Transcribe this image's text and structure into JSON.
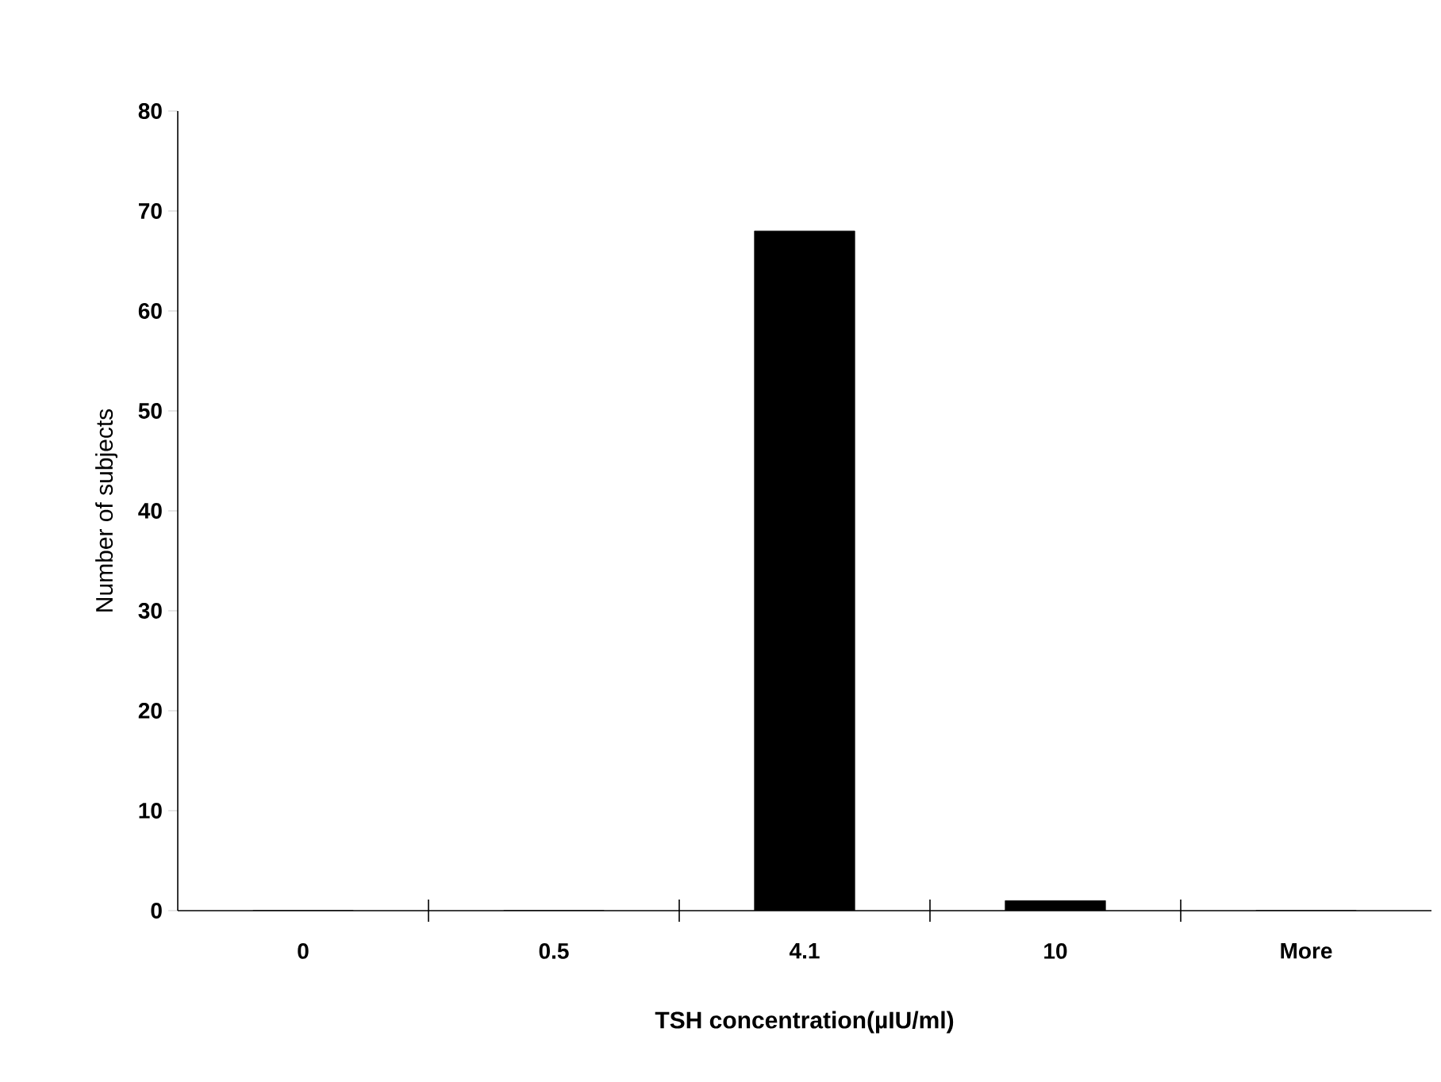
{
  "chart_data": {
    "type": "bar",
    "xlabel": "TSH concentration(µIU/ml)",
    "ylabel": "Number of subjects",
    "categories": [
      "0",
      "0.5",
      "4.1",
      "10",
      "More"
    ],
    "values": [
      0,
      0,
      68,
      1,
      0
    ],
    "color": "#000000",
    "ylim": [
      0,
      80
    ],
    "yticks": [
      0,
      10,
      20,
      30,
      40,
      50,
      60,
      70,
      80
    ]
  }
}
